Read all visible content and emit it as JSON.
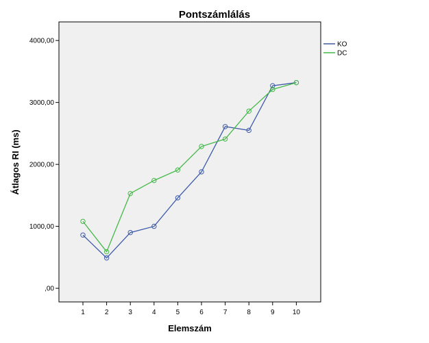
{
  "chart_data": {
    "type": "line",
    "title": "Pontszámlálás",
    "xlabel": "Elemszám",
    "ylabel": "Átlagos RI (ms)",
    "x": [
      "1",
      "2",
      "3",
      "4",
      "5",
      "6",
      "7",
      "8",
      "9",
      "10"
    ],
    "y_ticks": [
      {
        "value": 0,
        "label": ",00"
      },
      {
        "value": 1000,
        "label": "1000,00"
      },
      {
        "value": 2000,
        "label": "2000,00"
      },
      {
        "value": 3000,
        "label": "3000,00"
      },
      {
        "value": 4000,
        "label": "4000,00"
      }
    ],
    "ylim": [
      -220,
      4300
    ],
    "grid": false,
    "legend_position": "right",
    "plot_background": "#f0f0f0",
    "series": [
      {
        "name": "KO",
        "color": "#3d5aa8",
        "values": [
          860,
          490,
          900,
          1000,
          1460,
          1880,
          2610,
          2550,
          3270,
          3320
        ]
      },
      {
        "name": "DC",
        "color": "#44b848",
        "values": [
          1080,
          590,
          1530,
          1740,
          1910,
          2290,
          2410,
          2860,
          3210,
          3320
        ]
      }
    ]
  }
}
